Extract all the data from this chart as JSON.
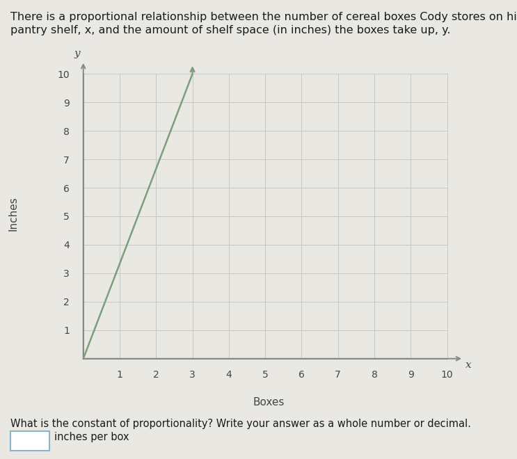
{
  "title_line1": "There is a proportional relationship between the number of cereal boxes Cody stores on his",
  "title_line2": "pantry shelf, x, and the amount of shelf space (in inches) the boxes take up, y.",
  "xlabel": "Boxes",
  "ylabel": "Inches",
  "xlim": [
    0,
    10
  ],
  "ylim": [
    0,
    10
  ],
  "xticks": [
    1,
    2,
    3,
    4,
    5,
    6,
    7,
    8,
    9,
    10
  ],
  "yticks": [
    1,
    2,
    3,
    4,
    5,
    6,
    7,
    8,
    9,
    10
  ],
  "line_x": [
    0,
    3
  ],
  "line_y": [
    0,
    10
  ],
  "line_color": "#7a9e7e",
  "line_width": 1.8,
  "arrow_color": "#888888",
  "grid_color": "#c8c8c8",
  "background_color": "#eae8e3",
  "plot_bg_color": "#eae8e3",
  "axis_label_color": "#444444",
  "tick_color": "#444444",
  "question_text": "What is the constant of proportionality? Write your answer as a whole number or decimal.",
  "answer_label": "inches per box",
  "x_axis_label": "x",
  "y_axis_label": "y",
  "title_fontsize": 11.5,
  "axis_fontsize": 11,
  "tick_fontsize": 10
}
